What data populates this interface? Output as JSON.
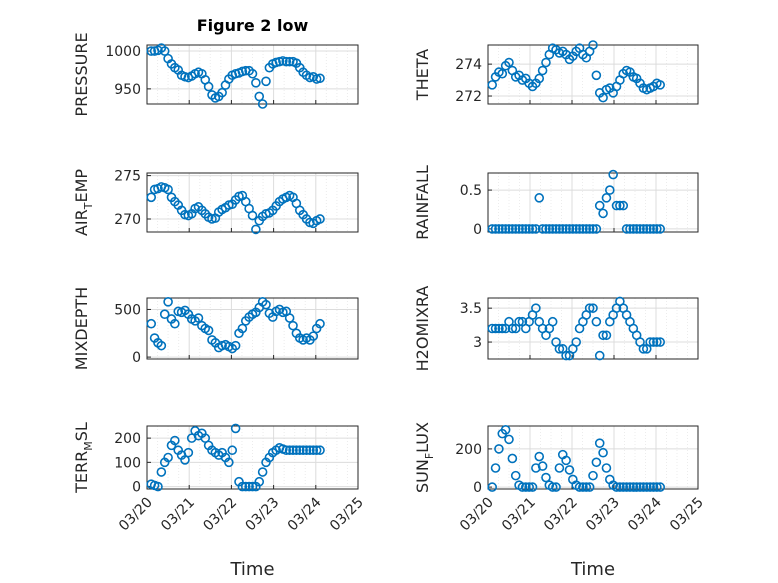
{
  "title": "Figure 2 low",
  "xlabel": "Time",
  "colors": {
    "marker": "#0072BD",
    "axis": "#262626"
  },
  "chart_data": [
    {
      "type": "scatter",
      "panel": "PRESSURE",
      "ylabel": "PRESSURE",
      "ylim": [
        930,
        1008
      ],
      "yticks": [
        950,
        1000
      ],
      "grid": true,
      "x": [
        0.1,
        0.18,
        0.26,
        0.34,
        0.42,
        0.5,
        0.58,
        0.66,
        0.74,
        0.82,
        0.9,
        0.98,
        1.06,
        1.14,
        1.22,
        1.3,
        1.38,
        1.46,
        1.54,
        1.62,
        1.7,
        1.78,
        1.86,
        1.94,
        2.02,
        2.1,
        2.18,
        2.26,
        2.34,
        2.42,
        2.5,
        2.58,
        2.66,
        2.74,
        2.82,
        2.9,
        2.98,
        3.06,
        3.14,
        3.22,
        3.3,
        3.38,
        3.46,
        3.54,
        3.62,
        3.7,
        3.78,
        3.86,
        3.94,
        4.02,
        4.1
      ],
      "y": [
        1000,
        1000,
        1001,
        1004,
        1000,
        990,
        983,
        978,
        975,
        968,
        966,
        965,
        967,
        970,
        972,
        970,
        962,
        953,
        942,
        938,
        940,
        945,
        955,
        963,
        968,
        970,
        971,
        973,
        974,
        974,
        970,
        958,
        940,
        930,
        960,
        978,
        983,
        985,
        986,
        987,
        986,
        986,
        986,
        984,
        978,
        972,
        968,
        965,
        966,
        963,
        964
      ]
    },
    {
      "type": "scatter",
      "panel": "THETA",
      "ylabel": "THETA",
      "ylim": [
        271.5,
        275.2
      ],
      "yticks": [
        272,
        274
      ],
      "grid": true,
      "x": [
        0.1,
        0.18,
        0.26,
        0.34,
        0.42,
        0.5,
        0.58,
        0.66,
        0.74,
        0.82,
        0.9,
        0.98,
        1.06,
        1.14,
        1.22,
        1.3,
        1.38,
        1.46,
        1.54,
        1.62,
        1.7,
        1.78,
        1.86,
        1.94,
        2.02,
        2.1,
        2.18,
        2.26,
        2.34,
        2.42,
        2.5,
        2.58,
        2.66,
        2.74,
        2.82,
        2.9,
        2.98,
        3.06,
        3.14,
        3.22,
        3.3,
        3.38,
        3.46,
        3.54,
        3.62,
        3.7,
        3.78,
        3.86,
        3.94,
        4.02,
        4.1
      ],
      "y": [
        272.7,
        273.2,
        273.5,
        273.4,
        273.9,
        274.1,
        273.6,
        273.2,
        273.3,
        273,
        273.1,
        272.8,
        272.6,
        272.8,
        273.1,
        273.6,
        274.1,
        274.6,
        275,
        274.9,
        274.7,
        274.8,
        274.6,
        274.3,
        274.5,
        274.8,
        275,
        274.6,
        274.4,
        274.8,
        275.2,
        273.3,
        272.2,
        271.9,
        272.4,
        272.5,
        272.2,
        272.6,
        273,
        273.4,
        273.6,
        273.5,
        273.2,
        273.1,
        272.8,
        272.5,
        272.4,
        272.5,
        272.6,
        272.8,
        272.7
      ]
    },
    {
      "type": "scatter",
      "panel": "AIR_TEMP",
      "ylabel": "AIR_TEMP",
      "ylim": [
        268.5,
        275.3
      ],
      "yticks": [
        270,
        275
      ],
      "grid": true,
      "x": [
        0.1,
        0.18,
        0.26,
        0.34,
        0.42,
        0.5,
        0.58,
        0.66,
        0.74,
        0.82,
        0.9,
        0.98,
        1.06,
        1.14,
        1.22,
        1.3,
        1.38,
        1.46,
        1.54,
        1.62,
        1.7,
        1.78,
        1.86,
        1.94,
        2.02,
        2.1,
        2.18,
        2.26,
        2.34,
        2.42,
        2.5,
        2.58,
        2.66,
        2.74,
        2.82,
        2.9,
        2.98,
        3.06,
        3.14,
        3.22,
        3.3,
        3.38,
        3.46,
        3.54,
        3.62,
        3.7,
        3.78,
        3.86,
        3.94,
        4.02,
        4.1
      ],
      "y": [
        272.5,
        273.4,
        273.5,
        273.7,
        273.6,
        273.4,
        272.5,
        272,
        271.6,
        271,
        270.5,
        270.4,
        270.6,
        271.2,
        271.4,
        271,
        270.6,
        270.2,
        270,
        270.1,
        270.8,
        271.1,
        271.3,
        271.6,
        271.7,
        272.2,
        272.6,
        272.7,
        272,
        271.2,
        270.4,
        268.8,
        269.8,
        270.3,
        270.6,
        270.7,
        271,
        271.5,
        272,
        272.3,
        272.5,
        272.7,
        272.5,
        271.8,
        271,
        270.5,
        270,
        269.6,
        269.5,
        269.8,
        270
      ]
    },
    {
      "type": "scatter",
      "panel": "RAINFALL",
      "ylabel": "RAINFALL",
      "ylim": [
        -0.04,
        0.72
      ],
      "yticks": [
        0,
        0.5
      ],
      "grid": true,
      "x": [
        0.1,
        0.18,
        0.26,
        0.34,
        0.42,
        0.5,
        0.58,
        0.66,
        0.74,
        0.82,
        0.9,
        0.98,
        1.06,
        1.14,
        1.22,
        1.3,
        1.38,
        1.46,
        1.54,
        1.62,
        1.7,
        1.78,
        1.86,
        1.94,
        2.02,
        2.1,
        2.18,
        2.26,
        2.34,
        2.42,
        2.5,
        2.58,
        2.66,
        2.74,
        2.82,
        2.9,
        2.98,
        3.06,
        3.14,
        3.22,
        3.3,
        3.38,
        3.46,
        3.54,
        3.62,
        3.7,
        3.78,
        3.86,
        3.94,
        4.02,
        4.1
      ],
      "y": [
        0,
        0,
        0,
        0,
        0,
        0,
        0,
        0,
        0,
        0,
        0,
        0,
        0,
        0,
        0.4,
        0,
        0,
        0,
        0,
        0,
        0,
        0,
        0,
        0,
        0,
        0,
        0,
        0,
        0,
        0,
        0,
        0,
        0.3,
        0.2,
        0.4,
        0.5,
        0.7,
        0.3,
        0.3,
        0.3,
        0,
        0,
        0,
        0,
        0,
        0,
        0,
        0,
        0,
        0,
        0
      ]
    },
    {
      "type": "scatter",
      "panel": "MIXDEPTH",
      "ylabel": "MIXDEPTH",
      "ylim": [
        -20,
        620
      ],
      "yticks": [
        0,
        500
      ],
      "grid": true,
      "x": [
        0.1,
        0.18,
        0.26,
        0.34,
        0.42,
        0.5,
        0.58,
        0.66,
        0.74,
        0.82,
        0.9,
        0.98,
        1.06,
        1.14,
        1.22,
        1.3,
        1.38,
        1.46,
        1.54,
        1.62,
        1.7,
        1.78,
        1.86,
        1.94,
        2.02,
        2.1,
        2.18,
        2.26,
        2.34,
        2.42,
        2.5,
        2.58,
        2.66,
        2.74,
        2.82,
        2.9,
        2.98,
        3.06,
        3.14,
        3.22,
        3.3,
        3.38,
        3.46,
        3.54,
        3.62,
        3.7,
        3.78,
        3.86,
        3.94,
        4.02,
        4.1
      ],
      "y": [
        350,
        200,
        150,
        120,
        450,
        580,
        400,
        350,
        480,
        470,
        490,
        450,
        400,
        380,
        410,
        330,
        300,
        280,
        180,
        150,
        100,
        120,
        130,
        110,
        90,
        120,
        250,
        300,
        380,
        420,
        450,
        470,
        520,
        580,
        550,
        460,
        420,
        480,
        500,
        470,
        480,
        410,
        330,
        250,
        200,
        180,
        200,
        180,
        220,
        300,
        350
      ]
    },
    {
      "type": "scatter",
      "panel": "H2OMIXRA",
      "ylabel": "H2OMIXRA",
      "ylim": [
        2.75,
        3.65
      ],
      "yticks": [
        3,
        3.5
      ],
      "grid": true,
      "x": [
        0.1,
        0.18,
        0.26,
        0.34,
        0.42,
        0.5,
        0.58,
        0.66,
        0.74,
        0.82,
        0.9,
        0.98,
        1.06,
        1.14,
        1.22,
        1.3,
        1.38,
        1.46,
        1.54,
        1.62,
        1.7,
        1.78,
        1.86,
        1.94,
        2.02,
        2.1,
        2.18,
        2.26,
        2.34,
        2.42,
        2.5,
        2.58,
        2.66,
        2.74,
        2.82,
        2.9,
        2.98,
        3.06,
        3.14,
        3.22,
        3.3,
        3.38,
        3.46,
        3.54,
        3.62,
        3.7,
        3.78,
        3.86,
        3.94,
        4.02,
        4.1
      ],
      "y": [
        3.2,
        3.2,
        3.2,
        3.2,
        3.2,
        3.3,
        3.2,
        3.2,
        3.3,
        3.3,
        3.2,
        3.3,
        3.4,
        3.5,
        3.3,
        3.2,
        3.1,
        3.2,
        3.3,
        3,
        2.9,
        2.9,
        2.8,
        2.8,
        2.9,
        3,
        3.2,
        3.3,
        3.4,
        3.5,
        3.5,
        3.3,
        2.8,
        3.1,
        3.1,
        3.3,
        3.4,
        3.5,
        3.6,
        3.5,
        3.4,
        3.3,
        3.2,
        3.1,
        3,
        2.9,
        2.9,
        3,
        3,
        3,
        3
      ]
    },
    {
      "type": "scatter",
      "panel": "TERR_MSL",
      "ylabel": "TERR_MSL",
      "ylim": [
        -10,
        250
      ],
      "yticks": [
        0,
        100,
        200
      ],
      "grid": true,
      "x": [
        0.1,
        0.18,
        0.26,
        0.34,
        0.42,
        0.5,
        0.58,
        0.66,
        0.74,
        0.82,
        0.9,
        0.98,
        1.06,
        1.14,
        1.22,
        1.3,
        1.38,
        1.46,
        1.54,
        1.62,
        1.7,
        1.78,
        1.86,
        1.94,
        2.02,
        2.1,
        2.18,
        2.26,
        2.34,
        2.42,
        2.5,
        2.58,
        2.66,
        2.74,
        2.82,
        2.9,
        2.98,
        3.06,
        3.14,
        3.22,
        3.3,
        3.38,
        3.46,
        3.54,
        3.62,
        3.7,
        3.78,
        3.86,
        3.94,
        4.02,
        4.1
      ],
      "y": [
        10,
        5,
        0,
        60,
        100,
        120,
        170,
        190,
        150,
        130,
        110,
        140,
        200,
        230,
        210,
        220,
        200,
        170,
        150,
        140,
        130,
        140,
        120,
        100,
        150,
        240,
        20,
        0,
        0,
        0,
        0,
        0,
        20,
        60,
        100,
        120,
        140,
        150,
        160,
        155,
        150,
        150,
        150,
        150,
        150,
        150,
        150,
        150,
        150,
        150,
        150
      ]
    },
    {
      "type": "scatter",
      "panel": "SUN_FLUX",
      "ylabel": "SUN_FLUX",
      "ylim": [
        -10,
        320
      ],
      "yticks": [
        0,
        200
      ],
      "grid": true,
      "x": [
        0.1,
        0.18,
        0.26,
        0.34,
        0.42,
        0.5,
        0.58,
        0.66,
        0.74,
        0.82,
        0.9,
        0.98,
        1.06,
        1.14,
        1.22,
        1.3,
        1.38,
        1.46,
        1.54,
        1.62,
        1.7,
        1.78,
        1.86,
        1.94,
        2.02,
        2.1,
        2.18,
        2.26,
        2.34,
        2.42,
        2.5,
        2.58,
        2.66,
        2.74,
        2.82,
        2.9,
        2.98,
        3.06,
        3.14,
        3.22,
        3.3,
        3.38,
        3.46,
        3.54,
        3.62,
        3.7,
        3.78,
        3.86,
        3.94,
        4.02,
        4.1
      ],
      "y": [
        0,
        100,
        200,
        280,
        300,
        250,
        150,
        60,
        10,
        0,
        0,
        0,
        0,
        100,
        160,
        110,
        50,
        10,
        0,
        0,
        100,
        170,
        140,
        90,
        40,
        10,
        0,
        0,
        0,
        0,
        60,
        130,
        230,
        180,
        100,
        40,
        10,
        0,
        0,
        0,
        0,
        0,
        0,
        0,
        0,
        0,
        0,
        0,
        0,
        0,
        0
      ]
    }
  ],
  "xticks": [
    "03/20",
    "03/21",
    "03/22",
    "03/23",
    "03/24",
    "03/25"
  ]
}
